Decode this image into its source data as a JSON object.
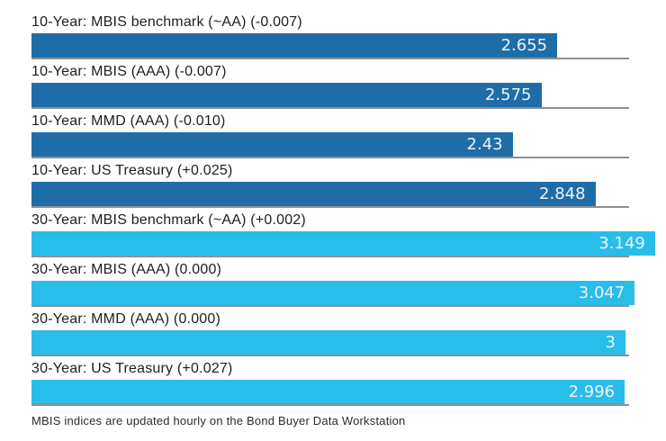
{
  "chart_data": {
    "type": "bar",
    "orientation": "horizontal",
    "title": "",
    "xlabel": "",
    "ylabel": "",
    "xlim": [
      0,
      3.02
    ],
    "grid": false,
    "legend": "none",
    "categories": [
      "10-Year: MBIS benchmark (~AA) (-0.007)",
      "10-Year: MBIS (AAA) (-0.007)",
      "10-Year: MMD (AAA) (-0.010)",
      "10-Year: US Treasury (+0.025)",
      "30-Year: MBIS benchmark (~AA) (+0.002)",
      "30-Year: MBIS (AAA) (0.000)",
      "30-Year: MMD (AAA) (0.000)",
      "30-Year: US Treasury (+0.027)"
    ],
    "values": [
      2.655,
      2.575,
      2.43,
      2.848,
      3.149,
      3.047,
      3,
      2.996
    ],
    "changes": [
      -0.007,
      -0.007,
      -0.01,
      0.025,
      0.002,
      0.0,
      0.0,
      0.027
    ],
    "value_labels": [
      "2.655",
      "2.575",
      "2.43",
      "2.848",
      "3.149",
      "3.047",
      "3",
      "2.996"
    ],
    "groups": [
      "10-year",
      "10-year",
      "10-year",
      "10-year",
      "30-year",
      "30-year",
      "30-year",
      "30-year"
    ],
    "annotations": [
      "MBIS indices are updated hourly on the Bond Buyer Data Workstation"
    ]
  },
  "rows": [
    {
      "label": "10-Year: MBIS benchmark (~AA) (-0.007)",
      "value": 2.655,
      "value_label": "2.655",
      "group": "10-year"
    },
    {
      "label": "10-Year: MBIS (AAA) (-0.007)",
      "value": 2.575,
      "value_label": "2.575",
      "group": "10-year"
    },
    {
      "label": "10-Year: MMD (AAA) (-0.010)",
      "value": 2.43,
      "value_label": "2.43",
      "group": "10-year"
    },
    {
      "label": "10-Year: US Treasury (+0.025)",
      "value": 2.848,
      "value_label": "2.848",
      "group": "10-year"
    },
    {
      "label": "30-Year: MBIS benchmark (~AA) (+0.002)",
      "value": 3.149,
      "value_label": "3.149",
      "group": "30-year"
    },
    {
      "label": "30-Year: MBIS (AAA) (0.000)",
      "value": 3.047,
      "value_label": "3.047",
      "group": "30-year"
    },
    {
      "label": "30-Year: MMD (AAA) (0.000)",
      "value": 3,
      "value_label": "3",
      "group": "30-year"
    },
    {
      "label": "30-Year: US Treasury (+0.027)",
      "value": 2.996,
      "value_label": "2.996",
      "group": "30-year"
    }
  ],
  "footer": {
    "text": "MBIS indices are updated hourly on the Bond Buyer Data Workstation"
  },
  "colors": {
    "bar_10_year": "#1f6da8",
    "bar_30_year": "#29bdea",
    "baseline": "#8f8f8f",
    "label_text": "#1e1e1e",
    "value_text": "#eef3f8",
    "background": "#ffffff"
  }
}
